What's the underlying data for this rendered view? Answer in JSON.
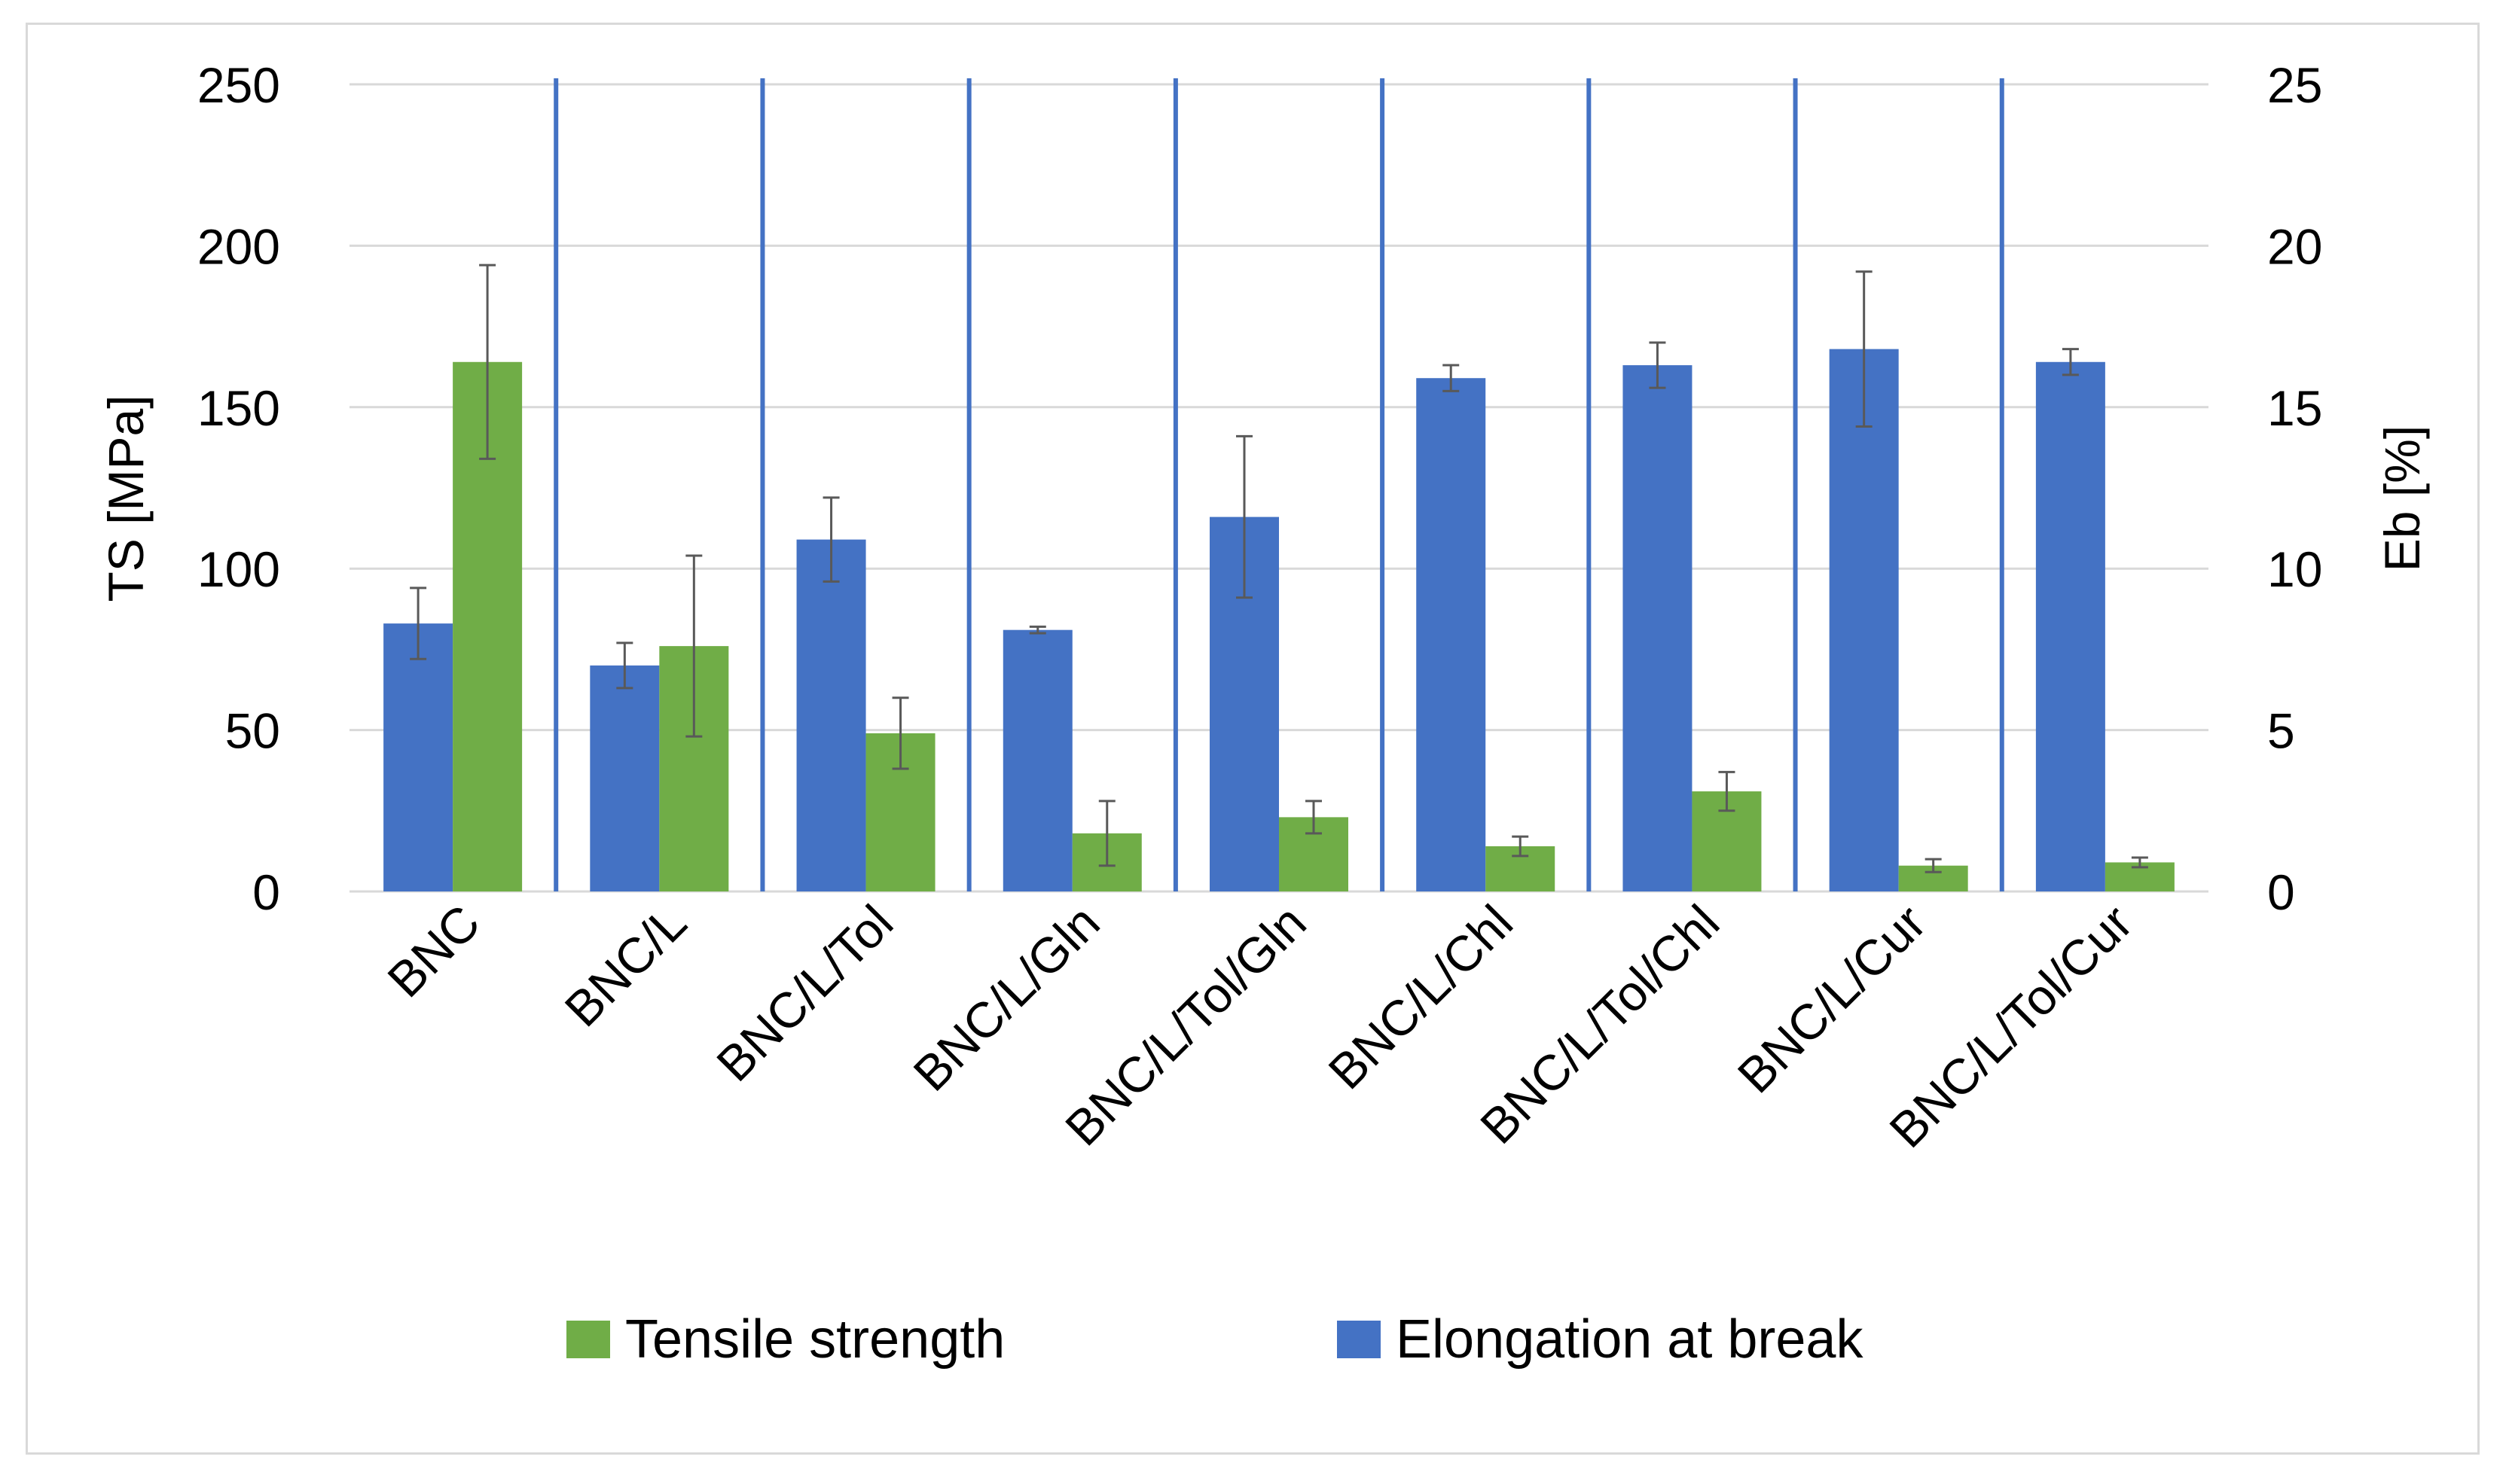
{
  "chart_data": {
    "type": "bar",
    "categories": [
      "BNC",
      "BNC/L",
      "BNC/L/Tol",
      "BNC/L/Gln",
      "BNC/L/Tol/Gln",
      "BNC/L/Chl",
      "BNC/L/Tol/Chl",
      "BNC/L/Cur",
      "BNC/L/Tol/Cur"
    ],
    "series": [
      {
        "name": "Elongation at break",
        "axis": "right",
        "color": "#4472c4",
        "values": [
          8.3,
          7.0,
          10.9,
          8.1,
          11.6,
          15.9,
          16.3,
          16.8,
          16.4
        ],
        "errors": [
          1.1,
          0.7,
          1.3,
          0.1,
          2.5,
          0.4,
          0.7,
          2.4,
          0.4
        ]
      },
      {
        "name": "Tensile strength",
        "axis": "left",
        "color": "#70ad47",
        "values": [
          164,
          76,
          49,
          18,
          23,
          14,
          31,
          8,
          9
        ],
        "errors": [
          30,
          28,
          11,
          10,
          5,
          3,
          6,
          2,
          1.5
        ]
      }
    ],
    "ylabel": "TS [MPa]",
    "ylabel_right": "Eb [%]",
    "ylim": [
      0,
      250
    ],
    "ylim_right": [
      0,
      25
    ],
    "yticks": [
      "0",
      "50",
      "100",
      "150",
      "200",
      "250"
    ],
    "yticks_right": [
      "0",
      "5",
      "10",
      "15",
      "20",
      "25"
    ],
    "grid": true,
    "legend": {
      "position": "bottom",
      "items": [
        {
          "label": "Tensile strength",
          "color": "#70ad47"
        },
        {
          "label": "Elongation at break",
          "color": "#4472c4"
        }
      ]
    }
  }
}
